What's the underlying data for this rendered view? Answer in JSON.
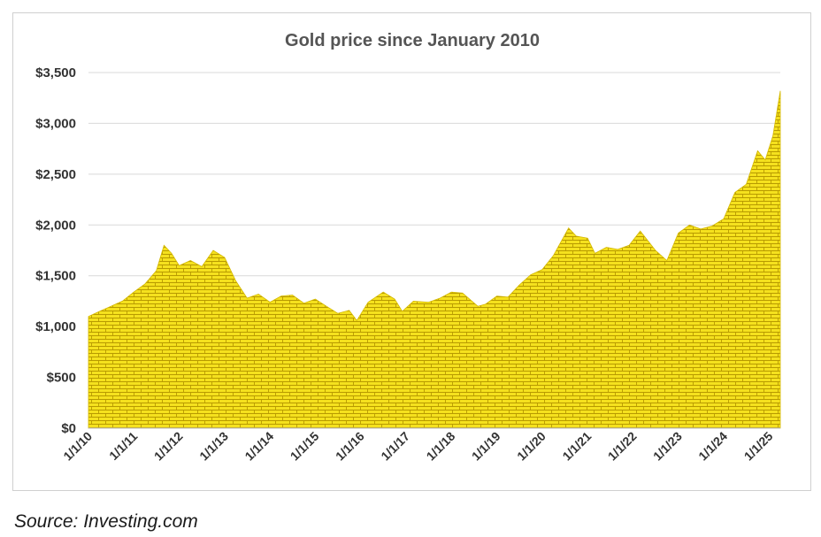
{
  "chart_data": {
    "type": "area",
    "title": "Gold price since January 2010",
    "xlabel": "",
    "ylabel": "",
    "ylim": [
      0,
      3500
    ],
    "y_ticks": [
      0,
      500,
      1000,
      1500,
      2000,
      2500,
      3000,
      3500
    ],
    "y_tick_labels": [
      "$0",
      "$500",
      "$1,000",
      "$1,500",
      "$2,000",
      "$2,500",
      "$3,000",
      "$3,500"
    ],
    "x_tick_labels": [
      "1/1/10",
      "1/1/11",
      "1/1/12",
      "1/1/13",
      "1/1/14",
      "1/1/15",
      "1/1/16",
      "1/1/17",
      "1/1/18",
      "1/1/19",
      "1/1/20",
      "1/1/21",
      "1/1/22",
      "1/1/23",
      "1/1/24",
      "1/1/25"
    ],
    "grid": true,
    "legend": "none",
    "colors": {
      "fill": "#f5e11e",
      "brick_line": "#b89a00",
      "grid": "#d9d9d9",
      "axis_text": "#333333"
    },
    "series": [
      {
        "x": [
          "2010-01",
          "2010-04",
          "2010-07",
          "2010-10",
          "2011-01",
          "2011-04",
          "2011-07",
          "2011-09",
          "2011-11",
          "2012-01",
          "2012-04",
          "2012-07",
          "2012-10",
          "2013-01",
          "2013-04",
          "2013-07",
          "2013-10",
          "2014-01",
          "2014-04",
          "2014-07",
          "2014-10",
          "2015-01",
          "2015-04",
          "2015-07",
          "2015-10",
          "2015-12",
          "2016-03",
          "2016-07",
          "2016-10",
          "2016-12",
          "2017-03",
          "2017-07",
          "2017-10",
          "2018-01",
          "2018-04",
          "2018-08",
          "2018-10",
          "2019-01",
          "2019-04",
          "2019-07",
          "2019-10",
          "2020-01",
          "2020-04",
          "2020-08",
          "2020-10",
          "2021-01",
          "2021-03",
          "2021-06",
          "2021-09",
          "2021-12",
          "2022-03",
          "2022-07",
          "2022-10",
          "2023-01",
          "2023-04",
          "2023-07",
          "2023-10",
          "2024-01",
          "2024-04",
          "2024-07",
          "2024-10",
          "2024-12",
          "2025-02",
          "2025-04"
        ],
        "values": [
          1100,
          1150,
          1200,
          1250,
          1340,
          1420,
          1550,
          1800,
          1720,
          1600,
          1650,
          1590,
          1750,
          1680,
          1450,
          1280,
          1320,
          1240,
          1300,
          1310,
          1230,
          1270,
          1200,
          1130,
          1160,
          1060,
          1240,
          1340,
          1270,
          1150,
          1250,
          1240,
          1280,
          1340,
          1330,
          1200,
          1220,
          1300,
          1290,
          1410,
          1510,
          1560,
          1700,
          1970,
          1890,
          1870,
          1720,
          1780,
          1760,
          1800,
          1940,
          1750,
          1650,
          1920,
          2000,
          1960,
          1990,
          2060,
          2320,
          2400,
          2730,
          2640,
          2880,
          3320
        ]
      }
    ]
  },
  "source": "Source: Investing.com"
}
